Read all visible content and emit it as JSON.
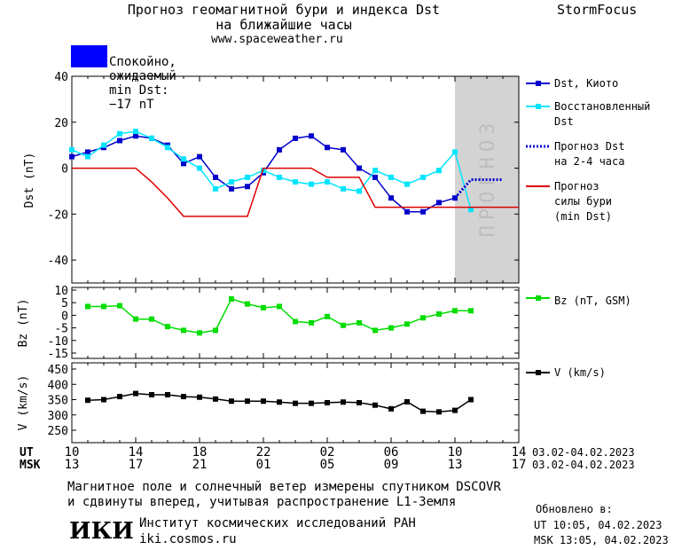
{
  "header": {
    "title_line1": "Прогноз геомагнитной бури и индекса Dst",
    "title_line2": "на ближайшие часы",
    "website": "www.spaceweather.ru",
    "brand": "StormFocus"
  },
  "status": {
    "text": "Спокойно, ожидаемый min Dst: −17 nT",
    "color": "#0000ff"
  },
  "forecast_label": "ПРОГНОЗ",
  "legend": {
    "dst_kyoto": "Dst, Киото",
    "dst_restored_1": "Восстановленный",
    "dst_restored_2": "Dst",
    "dst_forecast_1": "Прогноз Dst",
    "dst_forecast_2": "на 2-4 часа",
    "storm_forecast_1": "Прогноз",
    "storm_forecast_2": "силы бури",
    "storm_forecast_3": "(min Dst)",
    "bz": "Bz (nT, GSM)",
    "v": "V (km/s)"
  },
  "time_axis": {
    "ut_label": "UT",
    "msk_label": "MSK",
    "ut_ticks": [
      "10",
      "14",
      "18",
      "22",
      "02",
      "06",
      "10",
      "14"
    ],
    "msk_ticks": [
      "13",
      "17",
      "21",
      "01",
      "05",
      "09",
      "13",
      "17"
    ],
    "ut_range": "03.02-04.02.2023",
    "msk_range": "03.02-04.02.2023"
  },
  "footer": {
    "line1": "Магнитное поле и солнечный ветер измерены спутником DSCOVR",
    "line2": "и сдвинуты вперед, учитывая распространение L1-Земля",
    "institute": "Институт космических исследований РАН",
    "institute_site": "iki.cosmos.ru",
    "logo_text": "ИКИ",
    "updated_label": "Обновлено в:",
    "updated_ut": "UT  10:05, 04.02.2023",
    "updated_msk": "MSK 13:05, 04.02.2023"
  },
  "chart_data": [
    {
      "type": "line",
      "ylabel": "Dst (nT)",
      "ylim": [
        -50,
        40
      ],
      "xlim": [
        0,
        28
      ],
      "x_unit": "hours since 10 UT 03.02",
      "yticks": [
        40,
        20,
        0,
        -20,
        -40
      ],
      "forecast_region": [
        24,
        28
      ],
      "series": [
        {
          "name": "Dst, Киото",
          "color": "#0000cc",
          "x": [
            0,
            1,
            2,
            3,
            4,
            5,
            6,
            7,
            8,
            9,
            10,
            11,
            12,
            13,
            14,
            15,
            16,
            17,
            18,
            19,
            20,
            21,
            22,
            23,
            24
          ],
          "y": [
            5,
            7,
            9,
            12,
            14,
            13,
            10,
            2,
            5,
            -4,
            -9,
            -8,
            -2,
            8,
            13,
            14,
            9,
            8,
            0,
            -4,
            -13,
            -19,
            -19,
            -15,
            -13
          ]
        },
        {
          "name": "Восстановленный Dst",
          "color": "#00e5ff",
          "x": [
            0,
            1,
            2,
            3,
            4,
            5,
            6,
            7,
            8,
            9,
            10,
            11,
            12,
            13,
            14,
            15,
            16,
            17,
            18,
            19,
            20,
            21,
            22,
            23,
            24,
            25
          ],
          "y": [
            8,
            5,
            10,
            15,
            16,
            13,
            9,
            4,
            0,
            -9,
            -6,
            -4,
            -1,
            -4,
            -6,
            -7,
            -6,
            -9,
            -10,
            -1,
            -4,
            -7,
            -4,
            -1,
            7,
            -18
          ]
        },
        {
          "name": "Прогноз Dst на 2-4 часа",
          "color": "#0000cc",
          "x": [
            24,
            25,
            26,
            27
          ],
          "y": [
            -13,
            -5,
            -5,
            -5
          ]
        },
        {
          "name": "Прогноз силы бури (min Dst)",
          "color": "#dd0000",
          "x": [
            0,
            4,
            5,
            6,
            7,
            9,
            11,
            12,
            14,
            15,
            16,
            17,
            18,
            19,
            28
          ],
          "y": [
            0,
            0,
            -6,
            -13,
            -21,
            -21,
            -21,
            0,
            0,
            0,
            -4,
            -4,
            -4,
            -17,
            -17
          ]
        }
      ]
    },
    {
      "type": "line",
      "ylabel": "Bz (nT)",
      "ylim": [
        -15,
        10
      ],
      "xlim": [
        0,
        28
      ],
      "yticks": [
        10,
        5,
        0,
        -5,
        -10,
        -15
      ],
      "series": [
        {
          "name": "Bz (nT, GSM)",
          "color": "#00dd00",
          "x": [
            1,
            2,
            3,
            4,
            5,
            6,
            7,
            8,
            9,
            10,
            11,
            12,
            13,
            14,
            15,
            16,
            17,
            18,
            19,
            20,
            21,
            22,
            23,
            24,
            25
          ],
          "y": [
            3.5,
            3.5,
            3.8,
            -1.5,
            -1.5,
            -4.5,
            -6,
            -7,
            -6,
            6.5,
            4.5,
            3,
            3.5,
            -2.5,
            -3,
            -0.5,
            -4,
            -3,
            -6,
            -5,
            -3.5,
            -1,
            0.5,
            1.8,
            1.8
          ]
        }
      ]
    },
    {
      "type": "line",
      "ylabel": "V (km/s)",
      "ylim": [
        230,
        460
      ],
      "xlim": [
        0,
        28
      ],
      "yticks": [
        450,
        400,
        350,
        300,
        250
      ],
      "series": [
        {
          "name": "V (km/s)",
          "color": "#000000",
          "x": [
            1,
            2,
            3,
            4,
            5,
            6,
            7,
            8,
            9,
            10,
            11,
            12,
            13,
            14,
            15,
            16,
            17,
            18,
            19,
            20,
            21,
            22,
            23,
            24,
            25
          ],
          "y": [
            348,
            350,
            360,
            370,
            366,
            366,
            360,
            358,
            352,
            345,
            345,
            345,
            342,
            338,
            338,
            340,
            342,
            340,
            332,
            320,
            343,
            312,
            310,
            315,
            350
          ]
        }
      ]
    }
  ]
}
